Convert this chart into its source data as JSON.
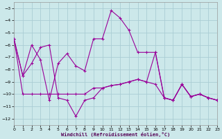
{
  "background_color": "#cce8ea",
  "grid_color": "#aacdd4",
  "line_color": "#990099",
  "xlim": [
    0,
    23
  ],
  "ylim": [
    -12.5,
    -2.5
  ],
  "yticks": [
    -12,
    -11,
    -10,
    -9,
    -8,
    -7,
    -6,
    -5,
    -4,
    -3
  ],
  "xticks": [
    0,
    1,
    2,
    3,
    4,
    5,
    6,
    7,
    8,
    9,
    10,
    11,
    12,
    13,
    14,
    15,
    16,
    17,
    18,
    19,
    20,
    21,
    22,
    23
  ],
  "xlabel": "Windchill (Refroidissement éolien,°C)",
  "series1_x": [
    0,
    1,
    2,
    3,
    4,
    5,
    6,
    7,
    8,
    9,
    10,
    11,
    12,
    13,
    14,
    15,
    16,
    17,
    18,
    19,
    20,
    21,
    22,
    23
  ],
  "series1_y": [
    -5.5,
    -10.0,
    -10.0,
    -10.0,
    -10.0,
    -10.0,
    -10.0,
    -10.0,
    -10.0,
    -9.5,
    -9.5,
    -9.3,
    -9.2,
    -9.0,
    -8.8,
    -9.0,
    -9.2,
    -10.3,
    -10.5,
    -9.2,
    -10.2,
    -10.0,
    -10.3,
    -10.5
  ],
  "series2_x": [
    0,
    1,
    2,
    3,
    4,
    5,
    6,
    7,
    8,
    9,
    10,
    11,
    12,
    13,
    14,
    15,
    16,
    17,
    18,
    19,
    20,
    21,
    22,
    23
  ],
  "series2_y": [
    -5.5,
    -8.5,
    -6.0,
    -7.2,
    -10.5,
    -7.5,
    -6.7,
    -7.7,
    -8.1,
    -5.5,
    -5.5,
    -3.2,
    -3.8,
    -4.8,
    -6.6,
    -6.6,
    -6.6,
    -10.3,
    -10.5,
    -9.2,
    -10.2,
    -10.0,
    -10.3,
    -10.5
  ],
  "series3_x": [
    0,
    1,
    2,
    3,
    4,
    5,
    6,
    7,
    8,
    9,
    10,
    11,
    12,
    13,
    14,
    15,
    16,
    17,
    18,
    19,
    20,
    21,
    22,
    23
  ],
  "series3_y": [
    -5.5,
    -8.5,
    -7.5,
    -6.2,
    -6.0,
    -10.3,
    -10.5,
    -11.8,
    -10.5,
    -10.3,
    -9.5,
    -9.3,
    -9.2,
    -9.0,
    -8.8,
    -9.0,
    -6.6,
    -10.3,
    -10.5,
    -9.2,
    -10.2,
    -10.0,
    -10.3,
    -10.5
  ]
}
